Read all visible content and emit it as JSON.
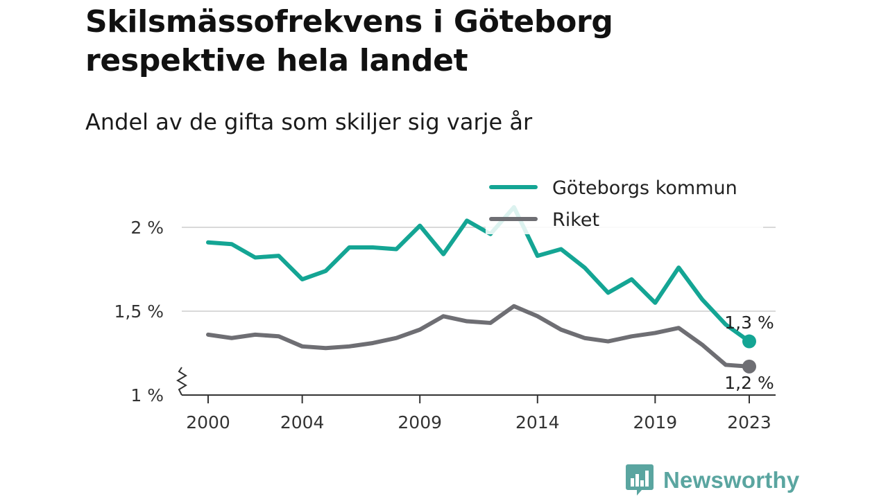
{
  "title": "Skilsmässofrekvens i Göteborg respektive hela landet",
  "subtitle": "Andel av de gifta som skiljer sig varje år",
  "brand": {
    "name": "Newsworthy",
    "icon": "newsworthy-logo-icon"
  },
  "colors": {
    "goteborg": "#14a594",
    "riket": "#6e6e73",
    "grid": "#d9d9d9"
  },
  "chart_data": {
    "type": "line",
    "title": "Skilsmässofrekvens i Göteborg respektive hela landet",
    "subtitle": "Andel av de gifta som skiljer sig varje år",
    "x": [
      2000,
      2001,
      2002,
      2003,
      2004,
      2005,
      2006,
      2007,
      2008,
      2009,
      2010,
      2011,
      2012,
      2013,
      2014,
      2015,
      2016,
      2017,
      2018,
      2019,
      2020,
      2021,
      2022,
      2023
    ],
    "x_ticks": [
      2000,
      2004,
      2009,
      2014,
      2019,
      2023
    ],
    "x_tick_labels": [
      "2000",
      "2004",
      "2009",
      "2014",
      "2019",
      "2023"
    ],
    "y_ticks": [
      1,
      1.5,
      2
    ],
    "y_tick_labels": [
      "1 %",
      "1,5 %",
      "2 %"
    ],
    "ylim": [
      1,
      2.1
    ],
    "y_axis_break": true,
    "grid": true,
    "legend_position": "top-right",
    "series": [
      {
        "name": "Göteborgs kommun",
        "color": "#14a594",
        "values": [
          1.91,
          1.9,
          1.82,
          1.83,
          1.69,
          1.74,
          1.88,
          1.88,
          1.87,
          2.01,
          1.84,
          2.04,
          1.96,
          2.12,
          1.83,
          1.87,
          1.76,
          1.61,
          1.69,
          1.55,
          1.76,
          1.57,
          1.42,
          1.32
        ],
        "end_label": "1,3 %"
      },
      {
        "name": "Riket",
        "color": "#6e6e73",
        "values": [
          1.36,
          1.34,
          1.36,
          1.35,
          1.29,
          1.28,
          1.29,
          1.31,
          1.34,
          1.39,
          1.47,
          1.44,
          1.43,
          1.53,
          1.47,
          1.39,
          1.34,
          1.32,
          1.35,
          1.37,
          1.4,
          1.3,
          1.18,
          1.17
        ],
        "end_label": "1,2 %"
      }
    ]
  }
}
